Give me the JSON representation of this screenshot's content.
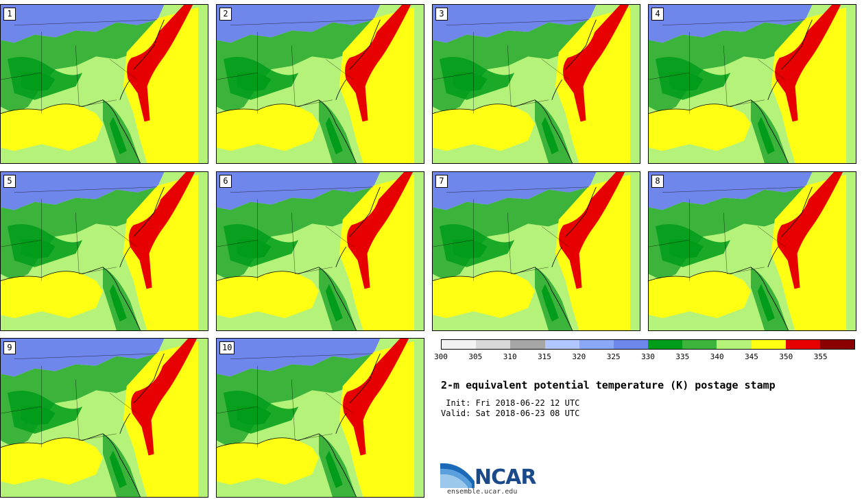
{
  "panels": [
    {
      "label": "1"
    },
    {
      "label": "2"
    },
    {
      "label": "3"
    },
    {
      "label": "4"
    },
    {
      "label": "5"
    },
    {
      "label": "6"
    },
    {
      "label": "7"
    },
    {
      "label": "8"
    },
    {
      "label": "9"
    },
    {
      "label": "10"
    }
  ],
  "legend": {
    "ticks": [
      "300",
      "305",
      "310",
      "315",
      "320",
      "325",
      "330",
      "335",
      "340",
      "345",
      "350",
      "355"
    ],
    "colors": [
      "#f2f2f2",
      "#d9d9d9",
      "#a6a6a6",
      "#b0c8ff",
      "#8aa8f5",
      "#6f86ea",
      "#009c1a",
      "#3cb43c",
      "#b5f27a",
      "#ffff14",
      "#e60000",
      "#8b0000"
    ]
  },
  "title": "2-m equivalent potential temperature (K) postage stamp",
  "init_text": " Init: Fri 2018-06-22 12 UTC",
  "valid_text": "Valid: Sat 2018-06-23 08 UTC",
  "logo": {
    "text": "NCAR",
    "url": "ensemble.ucar.edu"
  },
  "colors": {
    "cool": "#6f86ea",
    "green_dark": "#009c1a",
    "green_mid": "#3cb43c",
    "green_light": "#b5f27a",
    "yellow": "#ffff14",
    "red": "#e60000"
  }
}
